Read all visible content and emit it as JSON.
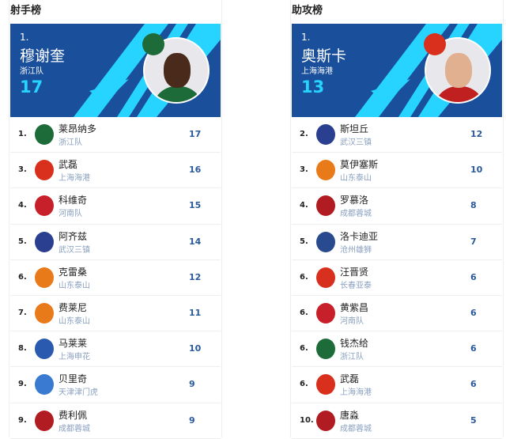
{
  "scorers": {
    "title": "射手榜",
    "leader": {
      "rank": "1.",
      "name": "穆谢奎",
      "team": "浙江队",
      "value": "17",
      "team_color": "#1e6b3a"
    },
    "rows": [
      {
        "rank": "1.",
        "name": "莱昂纳多",
        "team": "浙江队",
        "value": "17",
        "logo_color": "#1e6b3a"
      },
      {
        "rank": "3.",
        "name": "武磊",
        "team": "上海海港",
        "value": "16",
        "logo_color": "#d9301e"
      },
      {
        "rank": "4.",
        "name": "科维奇",
        "team": "河南队",
        "value": "15",
        "logo_color": "#c8202a"
      },
      {
        "rank": "5.",
        "name": "阿齐兹",
        "team": "武汉三镇",
        "value": "14",
        "logo_color": "#2a3f8f"
      },
      {
        "rank": "6.",
        "name": "克雷桑",
        "team": "山东泰山",
        "value": "12",
        "logo_color": "#e87a1a"
      },
      {
        "rank": "7.",
        "name": "费莱尼",
        "team": "山东泰山",
        "value": "11",
        "logo_color": "#e87a1a"
      },
      {
        "rank": "8.",
        "name": "马莱莱",
        "team": "上海申花",
        "value": "10",
        "logo_color": "#2a5ab0"
      },
      {
        "rank": "9.",
        "name": "贝里奇",
        "team": "天津津门虎",
        "value": "9",
        "logo_color": "#3a7ad0"
      },
      {
        "rank": "9.",
        "name": "费利佩",
        "team": "成都蓉城",
        "value": "9",
        "logo_color": "#b01c22"
      }
    ]
  },
  "assists": {
    "title": "助攻榜",
    "leader": {
      "rank": "1.",
      "name": "奥斯卡",
      "team": "上海海港",
      "value": "13",
      "team_color": "#d9301e"
    },
    "rows": [
      {
        "rank": "2.",
        "name": "斯坦丘",
        "team": "武汉三镇",
        "value": "12",
        "logo_color": "#2a3f8f"
      },
      {
        "rank": "3.",
        "name": "莫伊塞斯",
        "team": "山东泰山",
        "value": "10",
        "logo_color": "#e87a1a"
      },
      {
        "rank": "4.",
        "name": "罗慕洛",
        "team": "成都蓉城",
        "value": "8",
        "logo_color": "#b01c22"
      },
      {
        "rank": "5.",
        "name": "洛卡迪亚",
        "team": "沧州雄狮",
        "value": "7",
        "logo_color": "#2a4a8f"
      },
      {
        "rank": "6.",
        "name": "汪晋贤",
        "team": "长春亚泰",
        "value": "6",
        "logo_color": "#d8301e"
      },
      {
        "rank": "6.",
        "name": "黄紫昌",
        "team": "河南队",
        "value": "6",
        "logo_color": "#c8202a"
      },
      {
        "rank": "6.",
        "name": "钱杰给",
        "team": "浙江队",
        "value": "6",
        "logo_color": "#1e6b3a"
      },
      {
        "rank": "6.",
        "name": "武磊",
        "team": "上海海港",
        "value": "6",
        "logo_color": "#d9301e"
      },
      {
        "rank": "10.",
        "name": "唐淼",
        "team": "成都蓉城",
        "value": "5",
        "logo_color": "#b01c22"
      }
    ]
  },
  "colors": {
    "hero_bg": "#1a4f9c",
    "stripe": "#26d4ff",
    "value": "#2a5a9a"
  }
}
